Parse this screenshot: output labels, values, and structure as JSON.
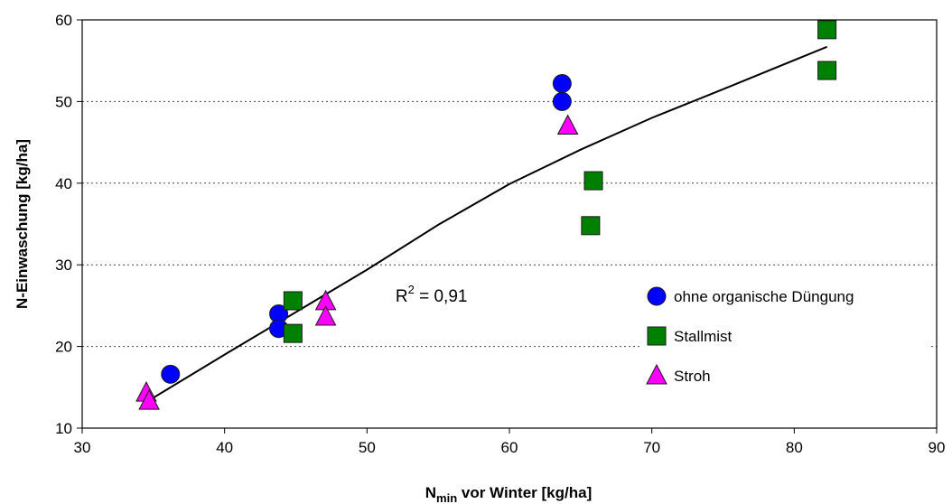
{
  "chart_data": {
    "type": "scatter",
    "title": "",
    "xlabel_main": "N",
    "xlabel_sub": "min",
    "xlabel_rest": " vor Winter [kg/ha]",
    "ylabel": "N-Einwaschung [kg/ha]",
    "xlim": [
      30,
      90
    ],
    "ylim": [
      10,
      60
    ],
    "xticks": [
      30,
      40,
      50,
      60,
      70,
      80,
      90
    ],
    "yticks": [
      10,
      20,
      30,
      40,
      50,
      60
    ],
    "grid_y": true,
    "legend_position": "right",
    "annotation": {
      "text_prefix": "R",
      "text_sup": "2",
      "text_suffix": " = 0,91",
      "x": 52,
      "y": 25.5
    },
    "series": [
      {
        "name": "ohne organische Düngung",
        "marker": "circle",
        "color": "#0000ff",
        "points": [
          [
            36.2,
            16.6
          ],
          [
            43.8,
            24.0
          ],
          [
            43.8,
            22.2
          ],
          [
            63.7,
            52.2
          ],
          [
            63.7,
            50.0
          ]
        ]
      },
      {
        "name": "Stallmist",
        "marker": "square",
        "color": "#008000",
        "points": [
          [
            44.8,
            25.6
          ],
          [
            44.8,
            21.6
          ],
          [
            65.9,
            40.3
          ],
          [
            65.7,
            34.8
          ],
          [
            82.3,
            58.8
          ],
          [
            82.3,
            53.8
          ]
        ]
      },
      {
        "name": "Stroh",
        "marker": "triangle",
        "color": "#ff00ff",
        "points": [
          [
            34.5,
            14.3
          ],
          [
            34.7,
            13.3
          ],
          [
            47.1,
            25.5
          ],
          [
            47.1,
            23.6
          ],
          [
            64.1,
            47.0
          ]
        ]
      }
    ],
    "trendline": {
      "color": "#000000",
      "points": [
        [
          34.5,
          13.2
        ],
        [
          40,
          19.0
        ],
        [
          45,
          24.2
        ],
        [
          50,
          29.4
        ],
        [
          55,
          34.9
        ],
        [
          60,
          39.9
        ],
        [
          65,
          44.1
        ],
        [
          70,
          48.0
        ],
        [
          75,
          51.5
        ],
        [
          82.3,
          56.7
        ]
      ]
    }
  }
}
